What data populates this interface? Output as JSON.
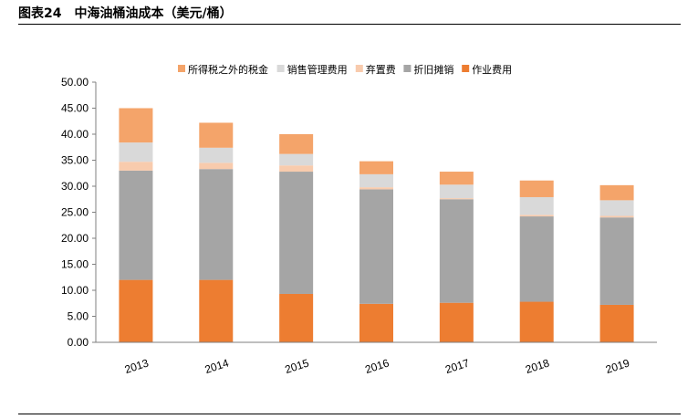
{
  "figure": {
    "title": "图表24　中海油桶油成本（美元/桶）"
  },
  "chart_data": {
    "type": "bar",
    "stacked": true,
    "categories": [
      "2013",
      "2014",
      "2015",
      "2016",
      "2017",
      "2018",
      "2019"
    ],
    "series": [
      {
        "name": "作业费用",
        "color": "#ED7D31",
        "values": [
          12.0,
          12.0,
          9.3,
          7.4,
          7.6,
          7.8,
          7.2
        ]
      },
      {
        "name": "折旧摊销",
        "color": "#A5A5A5",
        "values": [
          21.0,
          21.3,
          23.5,
          22.0,
          19.9,
          16.4,
          16.8
        ]
      },
      {
        "name": "弃置费",
        "color": "#F8CBAD",
        "values": [
          1.7,
          1.2,
          1.2,
          0.4,
          0.2,
          0.3,
          0.3
        ]
      },
      {
        "name": "销售管理费用",
        "color": "#D9D9D9",
        "values": [
          3.7,
          2.9,
          2.2,
          2.5,
          2.6,
          3.4,
          3.0
        ]
      },
      {
        "name": "所得税之外的税金",
        "color": "#F4A46A",
        "values": [
          6.6,
          4.8,
          3.8,
          2.5,
          2.5,
          3.2,
          2.9
        ]
      }
    ],
    "legend_order": [
      "所得税之外的税金",
      "销售管理费用",
      "弃置费",
      "折旧摊销",
      "作业费用"
    ],
    "ylim": [
      0,
      50
    ],
    "yticks": [
      "0.00",
      "5.00",
      "10.00",
      "15.00",
      "20.00",
      "25.00",
      "30.00",
      "35.00",
      "40.00",
      "45.00",
      "50.00"
    ],
    "grid": false,
    "legend_position": "top"
  }
}
